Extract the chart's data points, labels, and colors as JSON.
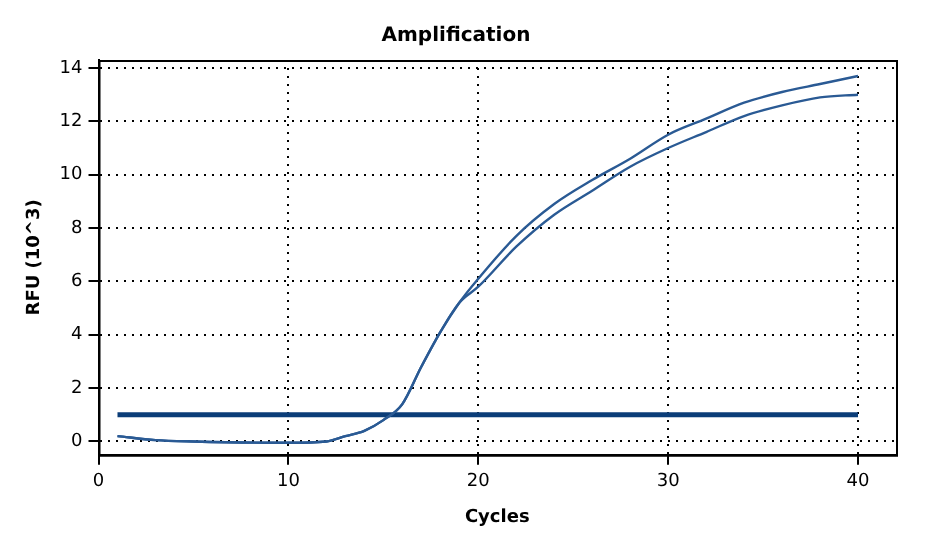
{
  "chart_data": {
    "type": "line",
    "title": "Amplification",
    "xlabel": "Cycles",
    "ylabel": "RFU (10^3)",
    "x": [
      1,
      3,
      5,
      10,
      12,
      13,
      14,
      15,
      16,
      17,
      18,
      19,
      20,
      22,
      24,
      26,
      28,
      30,
      32,
      34,
      36,
      38,
      40
    ],
    "series": [
      {
        "color": "#2a5a94",
        "values": [
          0.2,
          0.05,
          0,
          -0.05,
          0,
          0.2,
          0.4,
          0.8,
          1.4,
          2.8,
          4.1,
          5.2,
          6.1,
          7.7,
          8.9,
          9.8,
          10.6,
          11.5,
          12.1,
          12.7,
          13.1,
          13.4,
          13.7
        ]
      },
      {
        "color": "#2a5a94",
        "values": [
          0.2,
          0.05,
          0,
          -0.05,
          0,
          0.2,
          0.4,
          0.8,
          1.4,
          2.8,
          4.1,
          5.2,
          5.8,
          7.3,
          8.5,
          9.4,
          10.3,
          11.0,
          11.6,
          12.2,
          12.6,
          12.9,
          13.0
        ]
      },
      {
        "color": "#0b3d78",
        "x": [
          1,
          40
        ],
        "values": [
          1,
          1
        ]
      }
    ],
    "xlim": [
      0,
      42
    ],
    "ylim": [
      -0.5,
      14.3
    ],
    "xticks": [
      0,
      10,
      20,
      30,
      40
    ],
    "yticks": [
      0,
      2,
      4,
      6,
      8,
      10,
      12,
      14
    ],
    "grid": true,
    "legend": false,
    "marker": "none",
    "line_style": "solid"
  }
}
